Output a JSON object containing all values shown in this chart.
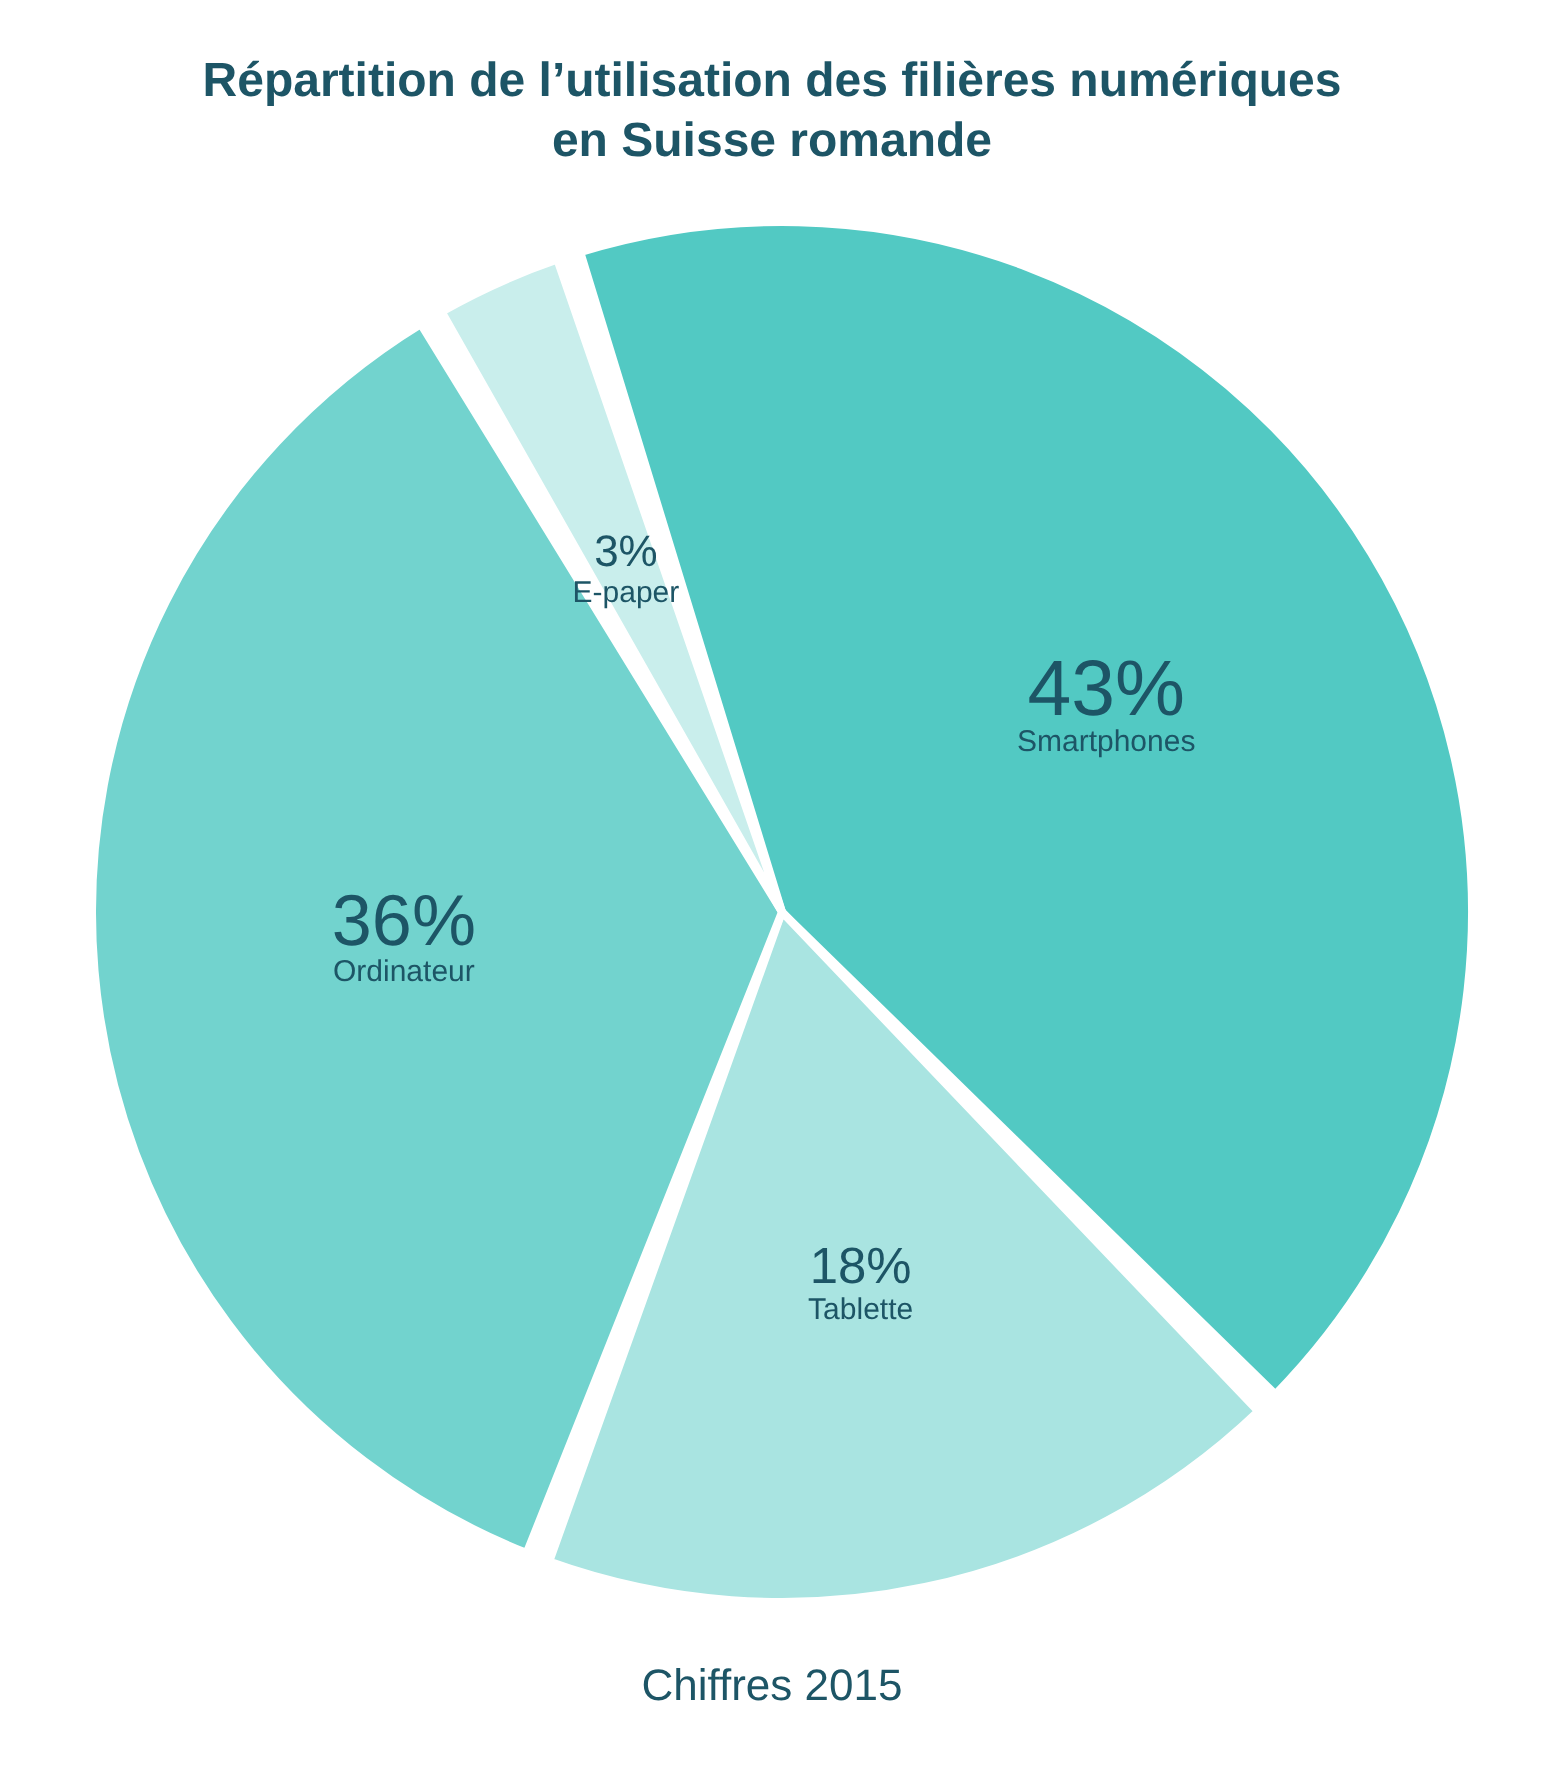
{
  "chart_data": {
    "type": "pie",
    "title": "Répartition de l’utilisation des filières numériques\nen Suisse romande",
    "categories": [
      "Smartphones",
      "Tablette",
      "Ordinateur",
      "E-paper"
    ],
    "values": [
      43,
      18,
      36,
      3
    ],
    "value_labels": [
      "43%",
      "18%",
      "36%",
      "3%"
    ],
    "colors": [
      "#52c9c3",
      "#a9e4e1",
      "#72d3ce",
      "#c9eeec"
    ],
    "legend": false,
    "annotations": [
      "Chiffres 2015"
    ]
  }
}
